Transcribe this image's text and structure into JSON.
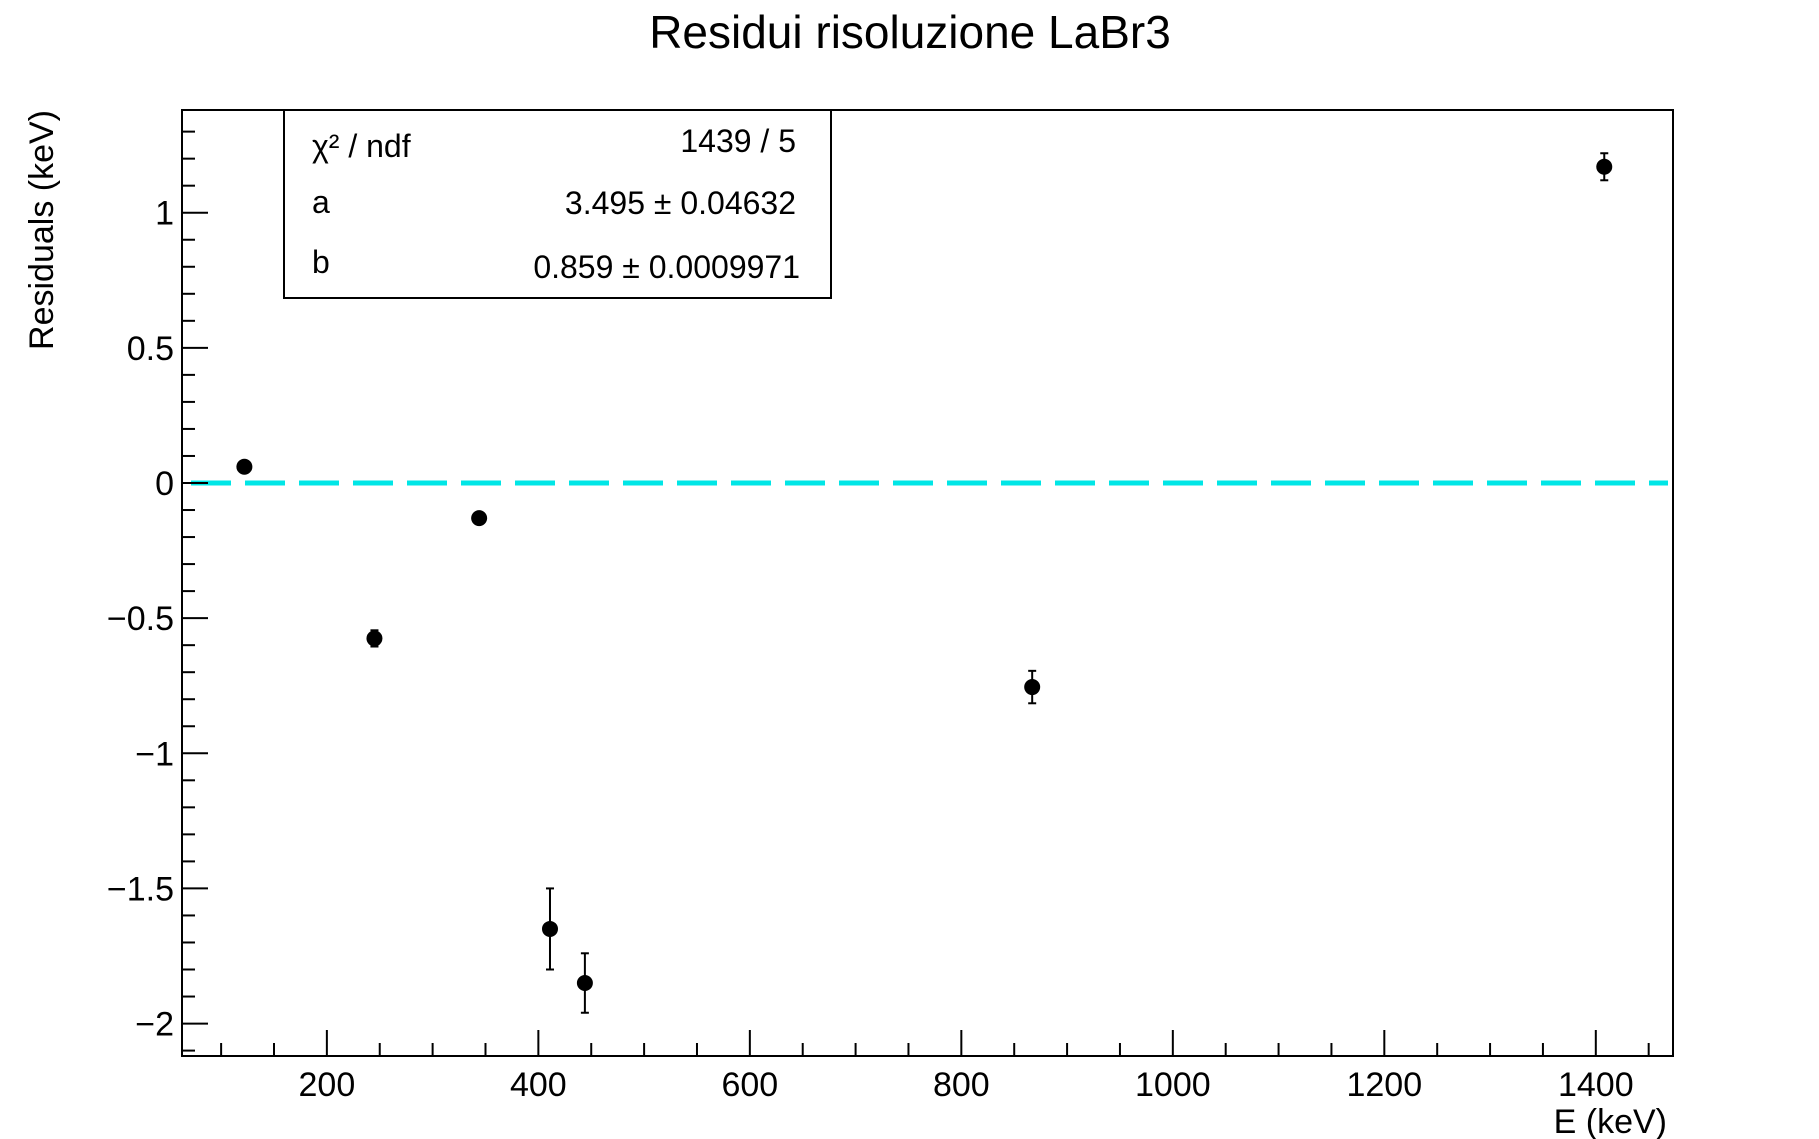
{
  "chart_data": {
    "type": "scatter",
    "title": "Residui risoluzione LaBr3",
    "xlabel": "E (keV)",
    "ylabel": "Residuals (keV)",
    "xlim": [
      63,
      1473
    ],
    "ylim": [
      -2.12,
      1.38
    ],
    "x_major_ticks": [
      200,
      400,
      600,
      800,
      1000,
      1200,
      1400
    ],
    "x_minor_step": 50,
    "y_major_ticks": [
      -2,
      -1.5,
      -1,
      -0.5,
      0,
      0.5,
      1
    ],
    "y_minor_step": 0.1,
    "y_tick_labels": [
      "−2",
      "−1.5",
      "−1",
      "−0.5",
      "0",
      "0.5",
      "1"
    ],
    "points": [
      {
        "x": 122,
        "y": 0.06,
        "err": 0.005
      },
      {
        "x": 245,
        "y": -0.575,
        "err": 0.03
      },
      {
        "x": 344,
        "y": -0.13,
        "err": 0.005
      },
      {
        "x": 411,
        "y": -1.65,
        "err": 0.15
      },
      {
        "x": 444,
        "y": -1.85,
        "err": 0.11
      },
      {
        "x": 867,
        "y": -0.755,
        "err": 0.06
      },
      {
        "x": 1408,
        "y": 1.17,
        "err": 0.05
      }
    ],
    "reference_line": {
      "y": 0,
      "color": "#00e6e6",
      "style": "dashed"
    },
    "marker_color": "#000000",
    "grid": false,
    "stats_box": {
      "placement": "top-left",
      "rows": [
        {
          "label": "χ² / ndf",
          "value": "1439 / 5"
        },
        {
          "label": "a",
          "value": "3.495 ± 0.04632"
        },
        {
          "label": "b",
          "value": "0.859 ± 0.0009971"
        }
      ]
    }
  }
}
